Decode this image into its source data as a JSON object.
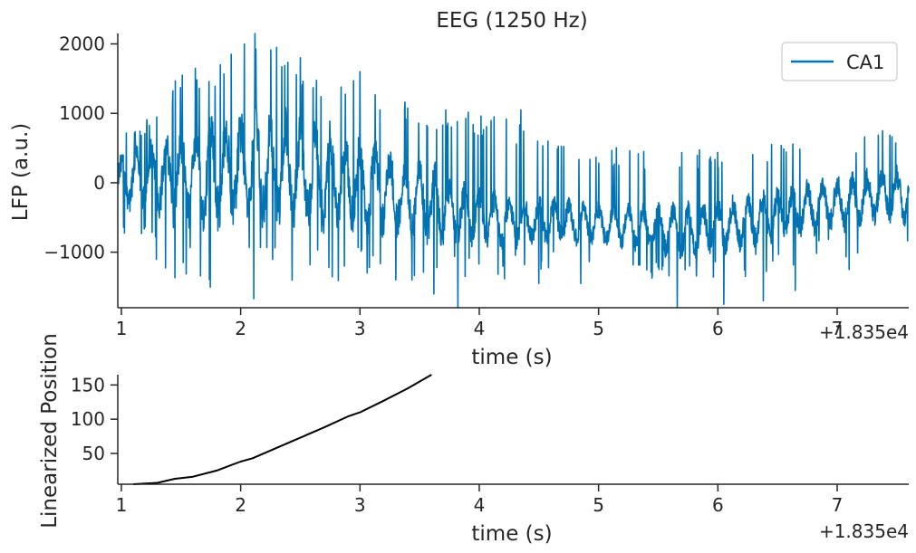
{
  "chart_data": [
    {
      "type": "line",
      "title": "EEG (1250 Hz)",
      "xlabel": "time (s)",
      "ylabel": "LFP (a.u.)",
      "x_offset_label": "+1.835e4",
      "xlim": [
        0.97,
        7.6
      ],
      "ylim": [
        -1800,
        2150
      ],
      "xticks": [
        1,
        2,
        3,
        4,
        5,
        6,
        7
      ],
      "yticks": [
        -1000,
        0,
        1000,
        2000
      ],
      "ytick_labels": [
        "−1000",
        "0",
        "1000",
        "2000"
      ],
      "legend": {
        "label": "CA1",
        "placement": "top-right"
      },
      "series": [
        {
          "name": "CA1",
          "color": "#0173b2",
          "x_start": 0.97,
          "x_end": 7.6,
          "envelope": [
            [
              0.97,
              0,
              300,
              650
            ],
            [
              1.2,
              100,
              400,
              900
            ],
            [
              1.5,
              100,
              550,
              1600
            ],
            [
              1.8,
              150,
              600,
              1700
            ],
            [
              2.0,
              200,
              650,
              2000
            ],
            [
              2.1,
              250,
              700,
              2150
            ],
            [
              2.3,
              200,
              650,
              1900
            ],
            [
              2.6,
              100,
              600,
              1650
            ],
            [
              3.0,
              0,
              550,
              1500
            ],
            [
              3.3,
              -150,
              450,
              1200
            ],
            [
              3.6,
              -300,
              450,
              1150
            ],
            [
              3.8,
              -450,
              350,
              1050
            ],
            [
              4.2,
              -550,
              300,
              1000
            ],
            [
              4.6,
              -550,
              250,
              600
            ],
            [
              5.0,
              -600,
              250,
              550
            ],
            [
              5.4,
              -650,
              250,
              450
            ],
            [
              5.7,
              -700,
              300,
              450
            ],
            [
              6.0,
              -650,
              300,
              500
            ],
            [
              6.4,
              -500,
              300,
              550
            ],
            [
              6.8,
              -350,
              300,
              600
            ],
            [
              7.2,
              -250,
              300,
              650
            ],
            [
              7.4,
              -150,
              300,
              750
            ],
            [
              7.6,
              -200,
              300,
              650
            ]
          ],
          "extremes": [
            [
              3.62,
              -1600
            ],
            [
              3.82,
              -1800
            ],
            [
              5.66,
              -1800
            ],
            [
              6.05,
              -1750
            ],
            [
              6.38,
              -1700
            ],
            [
              4.5,
              -1450
            ],
            [
              3.3,
              -1400
            ],
            [
              2.87,
              -1200
            ],
            [
              3.06,
              -1300
            ],
            [
              4.85,
              -1450
            ],
            [
              6.23,
              -1350
            ],
            [
              6.65,
              -1550
            ],
            [
              7.1,
              -1250
            ],
            [
              2.12,
              2150
            ],
            [
              2.03,
              2000
            ],
            [
              1.83,
              1700
            ],
            [
              1.62,
              1650
            ],
            [
              1.51,
              1550
            ],
            [
              2.3,
              1950
            ],
            [
              2.5,
              1800
            ],
            [
              3.0,
              1600
            ],
            [
              4.35,
              1050
            ],
            [
              5.38,
              450
            ],
            [
              6.45,
              550
            ],
            [
              7.38,
              750
            ]
          ]
        }
      ]
    },
    {
      "type": "line",
      "title": "",
      "xlabel": "time (s)",
      "ylabel": "Linearized Position",
      "x_offset_label": "+1.835e4",
      "xlim": [
        0.97,
        7.6
      ],
      "ylim": [
        5,
        165
      ],
      "xticks": [
        1,
        2,
        3,
        4,
        5,
        6,
        7
      ],
      "yticks": [
        50,
        100,
        150
      ],
      "series": [
        {
          "name": "Linearized Position",
          "color": "#000000",
          "x": [
            1.1,
            1.3,
            1.45,
            1.6,
            1.8,
            2.0,
            2.1,
            2.3,
            2.5,
            2.7,
            2.9,
            3.0,
            3.2,
            3.4,
            3.6
          ],
          "y": [
            5,
            7,
            13,
            16,
            25,
            38,
            43,
            58,
            73,
            88,
            104,
            110,
            127,
            145,
            165
          ]
        }
      ]
    }
  ]
}
